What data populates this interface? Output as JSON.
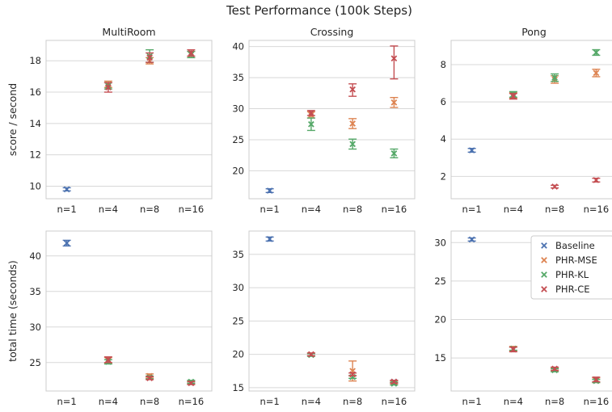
{
  "figure": {
    "title": "Test Performance (100k Steps)",
    "categories": [
      "n=1",
      "n=4",
      "n=8",
      "n=16"
    ],
    "series_colors": {
      "Baseline": "#4c72b0",
      "PHR-MSE": "#dd8452",
      "PHR-KL": "#55a868",
      "PHR-CE": "#c44e52"
    },
    "legend": {
      "placement": "top-right of bottom-right panel",
      "entries": [
        "Baseline",
        "PHR-MSE",
        "PHR-KL",
        "PHR-CE"
      ]
    }
  },
  "chart_data": [
    {
      "type": "scatter",
      "title": "MultiRoom",
      "ylabel": "score / second",
      "categories": [
        "n=1",
        "n=4",
        "n=8",
        "n=16"
      ],
      "ylim": [
        9.2,
        19.3
      ],
      "yticks": [
        10,
        12,
        14,
        16,
        18
      ],
      "grid": true,
      "series": [
        {
          "name": "Baseline",
          "points": [
            {
              "x": "n=1",
              "y": 9.8,
              "lo": 9.7,
              "hi": 9.9
            }
          ]
        },
        {
          "name": "PHR-MSE",
          "points": [
            {
              "x": "n=4",
              "y": 16.5,
              "lo": 16.3,
              "hi": 16.7
            },
            {
              "x": "n=8",
              "y": 18.0,
              "lo": 17.8,
              "hi": 18.2
            },
            {
              "x": "n=16",
              "y": 18.4,
              "lo": 18.2,
              "hi": 18.6
            }
          ]
        },
        {
          "name": "PHR-KL",
          "points": [
            {
              "x": "n=4",
              "y": 16.4,
              "lo": 16.2,
              "hi": 16.6
            },
            {
              "x": "n=8",
              "y": 18.3,
              "lo": 17.9,
              "hi": 18.7
            },
            {
              "x": "n=16",
              "y": 18.4,
              "lo": 18.2,
              "hi": 18.6
            }
          ]
        },
        {
          "name": "PHR-CE",
          "points": [
            {
              "x": "n=4",
              "y": 16.3,
              "lo": 16.0,
              "hi": 16.6
            },
            {
              "x": "n=8",
              "y": 18.2,
              "lo": 17.9,
              "hi": 18.5
            },
            {
              "x": "n=16",
              "y": 18.5,
              "lo": 18.3,
              "hi": 18.7
            }
          ]
        }
      ]
    },
    {
      "type": "scatter",
      "title": "Crossing",
      "ylabel": "",
      "categories": [
        "n=1",
        "n=4",
        "n=8",
        "n=16"
      ],
      "ylim": [
        15.5,
        41.0
      ],
      "yticks": [
        20,
        25,
        30,
        35,
        40
      ],
      "grid": true,
      "series": [
        {
          "name": "Baseline",
          "points": [
            {
              "x": "n=1",
              "y": 16.8,
              "lo": 16.5,
              "hi": 17.1
            }
          ]
        },
        {
          "name": "PHR-MSE",
          "points": [
            {
              "x": "n=4",
              "y": 29.0,
              "lo": 28.5,
              "hi": 29.5
            },
            {
              "x": "n=8",
              "y": 27.6,
              "lo": 26.8,
              "hi": 28.4
            },
            {
              "x": "n=16",
              "y": 31.0,
              "lo": 30.2,
              "hi": 31.8
            }
          ]
        },
        {
          "name": "PHR-KL",
          "points": [
            {
              "x": "n=4",
              "y": 27.5,
              "lo": 26.5,
              "hi": 28.5
            },
            {
              "x": "n=8",
              "y": 24.3,
              "lo": 23.5,
              "hi": 25.1
            },
            {
              "x": "n=16",
              "y": 22.8,
              "lo": 22.1,
              "hi": 23.5
            }
          ]
        },
        {
          "name": "PHR-CE",
          "points": [
            {
              "x": "n=4",
              "y": 29.3,
              "lo": 28.9,
              "hi": 29.7
            },
            {
              "x": "n=8",
              "y": 33.1,
              "lo": 32.0,
              "hi": 34.0
            },
            {
              "x": "n=16",
              "y": 38.1,
              "lo": 34.8,
              "hi": 40.1
            }
          ]
        }
      ]
    },
    {
      "type": "scatter",
      "title": "Pong",
      "ylabel": "",
      "categories": [
        "n=1",
        "n=4",
        "n=8",
        "n=16"
      ],
      "ylim": [
        0.8,
        9.3
      ],
      "yticks": [
        2,
        4,
        6,
        8
      ],
      "grid": true,
      "series": [
        {
          "name": "Baseline",
          "points": [
            {
              "x": "n=1",
              "y": 3.4,
              "lo": 3.3,
              "hi": 3.5
            }
          ]
        },
        {
          "name": "PHR-MSE",
          "points": [
            {
              "x": "n=4",
              "y": 6.35,
              "lo": 6.2,
              "hi": 6.5
            },
            {
              "x": "n=8",
              "y": 7.2,
              "lo": 7.0,
              "hi": 7.4
            },
            {
              "x": "n=16",
              "y": 7.55,
              "lo": 7.35,
              "hi": 7.75
            }
          ]
        },
        {
          "name": "PHR-KL",
          "points": [
            {
              "x": "n=4",
              "y": 6.4,
              "lo": 6.25,
              "hi": 6.55
            },
            {
              "x": "n=8",
              "y": 7.3,
              "lo": 7.1,
              "hi": 7.5
            },
            {
              "x": "n=16",
              "y": 8.65,
              "lo": 8.5,
              "hi": 8.8
            }
          ]
        },
        {
          "name": "PHR-CE",
          "points": [
            {
              "x": "n=4",
              "y": 6.3,
              "lo": 6.15,
              "hi": 6.45
            },
            {
              "x": "n=8",
              "y": 1.45,
              "lo": 1.38,
              "hi": 1.52
            },
            {
              "x": "n=16",
              "y": 1.8,
              "lo": 1.7,
              "hi": 1.9
            }
          ]
        }
      ]
    },
    {
      "type": "scatter",
      "title": "",
      "ylabel": "total time (seconds)",
      "categories": [
        "n=1",
        "n=4",
        "n=8",
        "n=16"
      ],
      "ylim": [
        21.0,
        43.5
      ],
      "yticks": [
        25,
        30,
        35,
        40
      ],
      "grid": true,
      "series": [
        {
          "name": "Baseline",
          "points": [
            {
              "x": "n=1",
              "y": 41.8,
              "lo": 41.4,
              "hi": 42.2
            }
          ]
        },
        {
          "name": "PHR-MSE",
          "points": [
            {
              "x": "n=4",
              "y": 25.3,
              "lo": 24.9,
              "hi": 25.7
            },
            {
              "x": "n=8",
              "y": 23.1,
              "lo": 22.8,
              "hi": 23.4
            },
            {
              "x": "n=16",
              "y": 22.2,
              "lo": 22.0,
              "hi": 22.4
            }
          ]
        },
        {
          "name": "PHR-KL",
          "points": [
            {
              "x": "n=4",
              "y": 25.1,
              "lo": 24.8,
              "hi": 25.4
            },
            {
              "x": "n=8",
              "y": 22.9,
              "lo": 22.7,
              "hi": 23.1
            },
            {
              "x": "n=16",
              "y": 22.3,
              "lo": 22.1,
              "hi": 22.5
            }
          ]
        },
        {
          "name": "PHR-CE",
          "points": [
            {
              "x": "n=4",
              "y": 25.4,
              "lo": 25.0,
              "hi": 25.8
            },
            {
              "x": "n=8",
              "y": 22.8,
              "lo": 22.6,
              "hi": 23.0
            },
            {
              "x": "n=16",
              "y": 22.1,
              "lo": 21.9,
              "hi": 22.3
            }
          ]
        }
      ]
    },
    {
      "type": "scatter",
      "title": "",
      "ylabel": "",
      "categories": [
        "n=1",
        "n=4",
        "n=8",
        "n=16"
      ],
      "ylim": [
        14.5,
        38.5
      ],
      "yticks": [
        15,
        20,
        25,
        30,
        35
      ],
      "grid": true,
      "series": [
        {
          "name": "Baseline",
          "points": [
            {
              "x": "n=1",
              "y": 37.3,
              "lo": 37.0,
              "hi": 37.6
            },
            {
              "x": "n=16",
              "y": 15.9,
              "lo": 15.7,
              "hi": 16.1
            }
          ]
        },
        {
          "name": "PHR-MSE",
          "points": [
            {
              "x": "n=4",
              "y": 20.0,
              "lo": 19.8,
              "hi": 20.2
            },
            {
              "x": "n=8",
              "y": 17.5,
              "lo": 16.0,
              "hi": 19.0
            },
            {
              "x": "n=16",
              "y": 15.8,
              "lo": 15.6,
              "hi": 16.0
            }
          ]
        },
        {
          "name": "PHR-KL",
          "points": [
            {
              "x": "n=4",
              "y": 19.9,
              "lo": 19.7,
              "hi": 20.1
            },
            {
              "x": "n=8",
              "y": 16.6,
              "lo": 16.4,
              "hi": 16.8
            },
            {
              "x": "n=16",
              "y": 15.6,
              "lo": 15.4,
              "hi": 15.8
            }
          ]
        },
        {
          "name": "PHR-CE",
          "points": [
            {
              "x": "n=4",
              "y": 20.0,
              "lo": 19.8,
              "hi": 20.2
            },
            {
              "x": "n=8",
              "y": 17.0,
              "lo": 16.8,
              "hi": 17.2
            },
            {
              "x": "n=16",
              "y": 15.9,
              "lo": 15.7,
              "hi": 16.1
            }
          ]
        }
      ]
    },
    {
      "type": "scatter",
      "title": "",
      "ylabel": "",
      "categories": [
        "n=1",
        "n=4",
        "n=8",
        "n=16"
      ],
      "ylim": [
        10.7,
        31.5
      ],
      "yticks": [
        15,
        20,
        25,
        30
      ],
      "grid": true,
      "series": [
        {
          "name": "Baseline",
          "points": [
            {
              "x": "n=1",
              "y": 30.4,
              "lo": 30.2,
              "hi": 30.6
            }
          ]
        },
        {
          "name": "PHR-MSE",
          "points": [
            {
              "x": "n=4",
              "y": 16.2,
              "lo": 15.9,
              "hi": 16.5
            },
            {
              "x": "n=8",
              "y": 13.5,
              "lo": 13.3,
              "hi": 13.7
            },
            {
              "x": "n=16",
              "y": 12.1,
              "lo": 11.8,
              "hi": 12.4
            }
          ]
        },
        {
          "name": "PHR-KL",
          "points": [
            {
              "x": "n=4",
              "y": 16.2,
              "lo": 16.0,
              "hi": 16.4
            },
            {
              "x": "n=8",
              "y": 13.4,
              "lo": 13.2,
              "hi": 13.6
            },
            {
              "x": "n=16",
              "y": 12.0,
              "lo": 11.8,
              "hi": 12.2
            }
          ]
        },
        {
          "name": "PHR-CE",
          "points": [
            {
              "x": "n=4",
              "y": 16.1,
              "lo": 15.8,
              "hi": 16.4
            },
            {
              "x": "n=8",
              "y": 13.6,
              "lo": 13.4,
              "hi": 13.8
            },
            {
              "x": "n=16",
              "y": 12.2,
              "lo": 11.9,
              "hi": 12.5
            }
          ]
        }
      ]
    }
  ]
}
